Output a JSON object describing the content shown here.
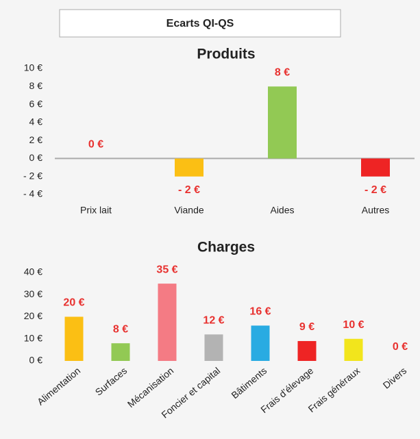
{
  "header": {
    "title": "Ecarts QI-QS"
  },
  "chart_data": [
    {
      "type": "bar",
      "title": "Produits",
      "categories": [
        "Prix lait",
        "Viande",
        "Aides",
        "Autres"
      ],
      "values": [
        0,
        -2,
        8,
        -2
      ],
      "value_labels": [
        "0 €",
        "- 2 €",
        "8 €",
        "- 2 €"
      ],
      "colors": [
        null,
        "#fbbf14",
        "#92c954",
        "#ee2424"
      ],
      "ylim": [
        -4,
        10
      ],
      "yticks": [
        {
          "value": -4,
          "label": "- 4 €"
        },
        {
          "value": -2,
          "label": "- 2 €"
        },
        {
          "value": 0,
          "label": "0 €"
        },
        {
          "value": 2,
          "label": "2 €"
        },
        {
          "value": 4,
          "label": "4 €"
        },
        {
          "value": 6,
          "label": "6 €"
        },
        {
          "value": 8,
          "label": "8 €"
        },
        {
          "value": 10,
          "label": "10 €"
        }
      ]
    },
    {
      "type": "bar",
      "title": "Charges",
      "categories": [
        "Alimentation",
        "Surfaces",
        "Mécanisation",
        "Foncier et capital",
        "Bâtiments",
        "Frais d’élevage",
        "Frais généraux",
        "Divers"
      ],
      "values": [
        20,
        8,
        35,
        12,
        16,
        9,
        10,
        0
      ],
      "value_labels": [
        "20 €",
        "8 €",
        "35 €",
        "12 €",
        "16 €",
        "9 €",
        "10 €",
        "0 €"
      ],
      "colors": [
        "#fbbf14",
        "#92c954",
        "#f47b84",
        "#b3b3b3",
        "#29abe2",
        "#ee2424",
        "#f2e51c",
        null
      ],
      "ylim": [
        0,
        40
      ],
      "yticks": [
        {
          "value": 0,
          "label": "0 €"
        },
        {
          "value": 10,
          "label": "10 €"
        },
        {
          "value": 20,
          "label": "20 €"
        },
        {
          "value": 30,
          "label": "30 €"
        },
        {
          "value": 40,
          "label": "40 €"
        }
      ]
    }
  ]
}
